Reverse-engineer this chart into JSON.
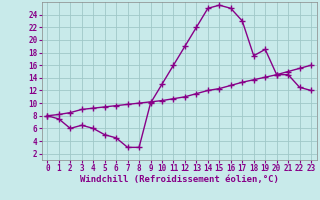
{
  "background_color": "#c8eaea",
  "grid_color": "#a0c8c8",
  "line_color": "#880088",
  "marker": "+",
  "markersize": 4,
  "linewidth": 1.0,
  "xlabel": "Windchill (Refroidissement éolien,°C)",
  "xlabel_fontsize": 6.5,
  "tick_fontsize": 5.5,
  "xlim": [
    -0.5,
    23.5
  ],
  "ylim": [
    1,
    26
  ],
  "yticks": [
    2,
    4,
    6,
    8,
    10,
    12,
    14,
    16,
    18,
    20,
    22,
    24
  ],
  "xticks": [
    0,
    1,
    2,
    3,
    4,
    5,
    6,
    7,
    8,
    9,
    10,
    11,
    12,
    13,
    14,
    15,
    16,
    17,
    18,
    19,
    20,
    21,
    22,
    23
  ],
  "curve1_x": [
    0,
    1,
    2,
    3,
    4,
    5,
    6,
    7,
    8,
    9,
    10,
    11,
    12,
    13,
    14,
    15,
    16,
    17,
    18,
    19,
    20,
    21,
    22,
    23
  ],
  "curve1_y": [
    8,
    7.5,
    6,
    6.5,
    6,
    5,
    4.5,
    3,
    3,
    10,
    13,
    16,
    19,
    22,
    25,
    25.5,
    25,
    23,
    17.5,
    18.5,
    14.5,
    14.5,
    12.5,
    12
  ],
  "curve2_x": [
    0,
    1,
    2,
    3,
    4,
    5,
    6,
    7,
    8,
    9,
    10,
    11,
    12,
    13,
    14,
    15,
    16,
    17,
    18,
    19,
    20,
    21,
    22,
    23
  ],
  "curve2_y": [
    8,
    8.2,
    8.5,
    9,
    9.2,
    9.4,
    9.6,
    9.8,
    10,
    10.2,
    10.4,
    10.7,
    11,
    11.5,
    12,
    12.3,
    12.8,
    13.3,
    13.7,
    14.1,
    14.5,
    15,
    15.5,
    16
  ],
  "curve3_x": [
    0,
    23
  ],
  "curve3_y": [
    8,
    16
  ]
}
